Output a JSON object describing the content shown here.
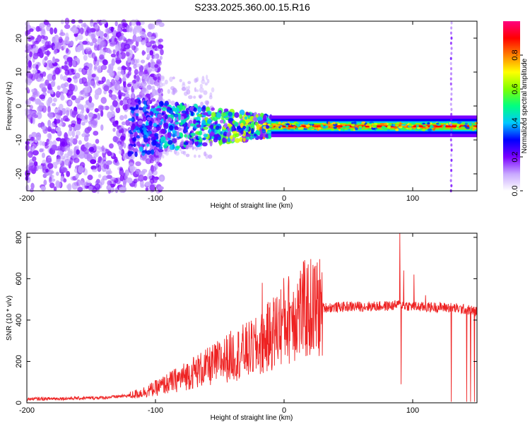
{
  "title": "S233.2025.360.00.15.R16",
  "chart_data": [
    {
      "type": "heatmap",
      "name": "spectrogram",
      "xlabel": "Height of straight line (km)",
      "ylabel": "Frequency (Hz)",
      "xlim": [
        -200,
        150
      ],
      "ylim": [
        -25,
        25
      ],
      "xticks": [
        -200,
        -100,
        0,
        100
      ],
      "xtick_labels": [
        "-200",
        "-100",
        "0",
        "100"
      ],
      "yticks": [
        -20,
        -10,
        0,
        10,
        20
      ],
      "ytick_labels": [
        "-20",
        "-10",
        "0",
        "10",
        "20"
      ],
      "colorbar": {
        "label": "Normalized spectral amplitude",
        "range": [
          0,
          1
        ],
        "ticks": [
          0.0,
          0.2,
          0.4,
          0.6,
          0.8
        ],
        "tick_labels": [
          "0.0",
          "0.2",
          "0.4",
          "0.6",
          "0.8"
        ],
        "colors": [
          "#ffffff",
          "#c8a8ff",
          "#7a00ff",
          "#0000ff",
          "#00c8ff",
          "#00ff80",
          "#80ff00",
          "#ffff00",
          "#ff8000",
          "#ff0000",
          "#ff0080"
        ]
      },
      "features": {
        "noise_region_x": [
          -200,
          -110
        ],
        "scatter_region_x": [
          -120,
          -10
        ],
        "tone_region_x": [
          -20,
          150
        ],
        "tone_frequency_hz": -6,
        "tone_peak_amplitude": 1.0,
        "vertical_streak_x": 130
      }
    },
    {
      "type": "line",
      "name": "snr",
      "xlabel": "Height of straight line (km)",
      "ylabel": "SNR (10 * v/v)",
      "xlim": [
        -200,
        150
      ],
      "ylim": [
        0,
        820
      ],
      "xticks": [
        -200,
        -100,
        0,
        100
      ],
      "xtick_labels": [
        "-200",
        "-100",
        "0",
        "100"
      ],
      "yticks": [
        0,
        200,
        400,
        600,
        800
      ],
      "ytick_labels": [
        "0",
        "200",
        "400",
        "600",
        "800"
      ],
      "color": "#ee2222",
      "x": [
        -200,
        -180,
        -160,
        -140,
        -120,
        -110,
        -100,
        -90,
        -80,
        -70,
        -60,
        -50,
        -40,
        -30,
        -20,
        -15,
        -10,
        -5,
        0,
        5,
        10,
        15,
        20,
        30,
        40,
        50,
        60,
        70,
        80,
        85,
        90,
        95,
        100,
        105,
        110,
        120,
        130,
        135,
        140,
        145,
        150
      ],
      "values": [
        18,
        20,
        22,
        25,
        35,
        50,
        70,
        95,
        120,
        150,
        170,
        200,
        230,
        250,
        270,
        300,
        330,
        360,
        400,
        410,
        440,
        445,
        455,
        460,
        462,
        465,
        466,
        466,
        468,
        470,
        475,
        470,
        466,
        464,
        462,
        462,
        460,
        455,
        452,
        448,
        440
      ],
      "spikes": [
        {
          "x": -17,
          "value": 580
        },
        {
          "x": 5,
          "value": 460
        },
        {
          "x": 90,
          "value": 820
        },
        {
          "x": 91,
          "value": 90
        },
        {
          "x": 93,
          "value": 640
        },
        {
          "x": 101,
          "value": 620
        },
        {
          "x": 110,
          "value": 520
        },
        {
          "x": 130,
          "value": 5
        },
        {
          "x": 142,
          "value": 5
        },
        {
          "x": 145,
          "value": 5
        },
        {
          "x": 148,
          "value": 5
        }
      ]
    }
  ]
}
